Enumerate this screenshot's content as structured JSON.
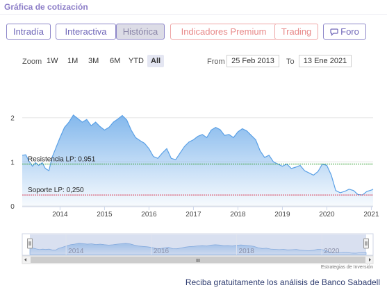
{
  "header": {
    "title": "Gráfica de cotización"
  },
  "tabs": [
    {
      "label": "Intradía",
      "style": "purple",
      "active": false
    },
    {
      "label": "Interactiva",
      "style": "purple",
      "active": false
    },
    {
      "label": "Histórica",
      "style": "purple",
      "active": true
    },
    {
      "label": "Indicadores Premium",
      "style": "red",
      "active": false
    },
    {
      "label": "Trading",
      "style": "red",
      "active": false
    },
    {
      "label": "Foro",
      "style": "purple",
      "active": false,
      "icon": "chat-bubble-icon"
    }
  ],
  "toolbar": {
    "zoom_label": "Zoom",
    "zoom_buttons": [
      {
        "label": "1W",
        "selected": false
      },
      {
        "label": "1M",
        "selected": false
      },
      {
        "label": "3M",
        "selected": false
      },
      {
        "label": "6M",
        "selected": false
      },
      {
        "label": "YTD",
        "selected": false
      },
      {
        "label": "All",
        "selected": true
      }
    ],
    "from_label": "From",
    "from_value": "25 Feb 2013",
    "to_label": "To",
    "to_value": "13 Ene 2021"
  },
  "chart_data": {
    "type": "area",
    "xlabel": "",
    "ylabel": "",
    "ylim": [
      0,
      2.2
    ],
    "yticks": [
      0,
      1,
      2
    ],
    "xticks": [
      "2014",
      "2015",
      "2016",
      "2017",
      "2018",
      "2019",
      "2020",
      "2021"
    ],
    "xlim": [
      2013.15,
      2021.04
    ],
    "grid": "horizontal",
    "series": [
      {
        "name": "",
        "color": "#5aa0e6",
        "points": [
          [
            2013.15,
            1.15
          ],
          [
            2013.23,
            1.16
          ],
          [
            2013.3,
            1.02
          ],
          [
            2013.38,
            0.9
          ],
          [
            2013.45,
            0.98
          ],
          [
            2013.52,
            0.92
          ],
          [
            2013.6,
            0.98
          ],
          [
            2013.67,
            0.85
          ],
          [
            2013.75,
            0.8
          ],
          [
            2013.82,
            1.1
          ],
          [
            2013.9,
            1.3
          ],
          [
            2014.0,
            1.55
          ],
          [
            2014.1,
            1.78
          ],
          [
            2014.2,
            1.9
          ],
          [
            2014.3,
            2.06
          ],
          [
            2014.4,
            1.98
          ],
          [
            2014.5,
            1.9
          ],
          [
            2014.6,
            1.96
          ],
          [
            2014.7,
            1.82
          ],
          [
            2014.8,
            1.9
          ],
          [
            2014.9,
            1.8
          ],
          [
            2015.0,
            1.72
          ],
          [
            2015.1,
            1.78
          ],
          [
            2015.2,
            1.9
          ],
          [
            2015.3,
            1.97
          ],
          [
            2015.4,
            2.05
          ],
          [
            2015.5,
            1.95
          ],
          [
            2015.6,
            1.72
          ],
          [
            2015.7,
            1.55
          ],
          [
            2015.8,
            1.48
          ],
          [
            2015.9,
            1.42
          ],
          [
            2016.0,
            1.3
          ],
          [
            2016.1,
            1.12
          ],
          [
            2016.2,
            1.08
          ],
          [
            2016.3,
            1.2
          ],
          [
            2016.4,
            1.3
          ],
          [
            2016.5,
            1.08
          ],
          [
            2016.6,
            1.05
          ],
          [
            2016.7,
            1.2
          ],
          [
            2016.8,
            1.35
          ],
          [
            2016.9,
            1.45
          ],
          [
            2017.0,
            1.5
          ],
          [
            2017.1,
            1.58
          ],
          [
            2017.2,
            1.62
          ],
          [
            2017.3,
            1.55
          ],
          [
            2017.4,
            1.72
          ],
          [
            2017.5,
            1.78
          ],
          [
            2017.6,
            1.73
          ],
          [
            2017.7,
            1.6
          ],
          [
            2017.8,
            1.62
          ],
          [
            2017.9,
            1.55
          ],
          [
            2018.0,
            1.68
          ],
          [
            2018.1,
            1.75
          ],
          [
            2018.2,
            1.7
          ],
          [
            2018.3,
            1.6
          ],
          [
            2018.4,
            1.5
          ],
          [
            2018.5,
            1.25
          ],
          [
            2018.6,
            1.1
          ],
          [
            2018.7,
            1.15
          ],
          [
            2018.8,
            1.0
          ],
          [
            2018.9,
            0.95
          ],
          [
            2019.0,
            0.9
          ],
          [
            2019.1,
            0.95
          ],
          [
            2019.2,
            0.85
          ],
          [
            2019.3,
            0.88
          ],
          [
            2019.4,
            0.92
          ],
          [
            2019.5,
            0.8
          ],
          [
            2019.6,
            0.75
          ],
          [
            2019.7,
            0.7
          ],
          [
            2019.8,
            0.78
          ],
          [
            2019.9,
            0.95
          ],
          [
            2020.0,
            0.92
          ],
          [
            2020.1,
            0.7
          ],
          [
            2020.2,
            0.35
          ],
          [
            2020.3,
            0.3
          ],
          [
            2020.4,
            0.33
          ],
          [
            2020.5,
            0.38
          ],
          [
            2020.6,
            0.35
          ],
          [
            2020.7,
            0.26
          ],
          [
            2020.8,
            0.25
          ],
          [
            2020.9,
            0.33
          ],
          [
            2021.0,
            0.36
          ],
          [
            2021.04,
            0.38
          ]
        ]
      }
    ],
    "annotations": [
      {
        "label": "Resistencia LP: 0,951",
        "value": 0.951,
        "color": "#2a9a2a"
      },
      {
        "label": "Soporte LP: 0,250",
        "value": 0.25,
        "color": "#d63a52"
      }
    ],
    "navigator": {
      "xticks": [
        "2014",
        "2016",
        "2018",
        "2020"
      ],
      "handle_glyph": "III"
    },
    "credits": "Estrategias de Inversión"
  },
  "promo": {
    "text": "Reciba gratuitamente los análisis de Banco Sabadell"
  }
}
